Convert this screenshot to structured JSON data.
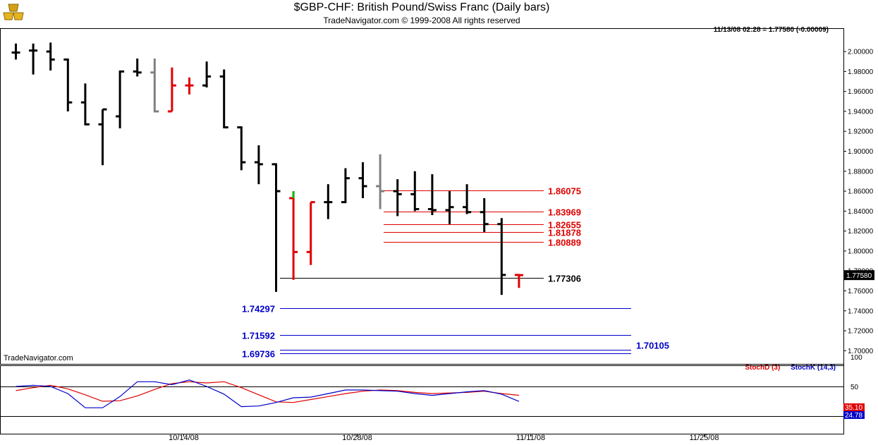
{
  "header": {
    "title": "$GBP-CHF:  British Pound/Swiss Franc  (Daily bars)",
    "subtitle": "TradeNavigator.com © 1999-2008 All rights reserved",
    "status": "11/13/08 02:28 = 1.77580 (-0.00009)",
    "watermark": "TradeNavigator.com",
    "logo_icon": "gold-bars-logo-icon"
  },
  "colors": {
    "up_bar": "#000000",
    "down_bar_red": "#e00000",
    "gray_bar": "#808080",
    "resistance": "#e00000",
    "support": "#0000c8",
    "stoch_d": "#e00000",
    "stoch_k": "#0000c8",
    "last_price_bg": "#000000"
  },
  "indicator": {
    "stoch_d_label": "StochD (3)",
    "stoch_k_label": "StochK (14,3)",
    "levels": [
      "100",
      "50",
      "0"
    ],
    "d_value": "35.10",
    "k_value": "24.78"
  },
  "chart_data": {
    "type": "ohlc",
    "title": "$GBP-CHF:  British Pound/Swiss Franc  (Daily bars)",
    "x_ticks": [
      "10/14/08",
      "10/28/08",
      "11/11/08",
      "11/25/08"
    ],
    "y_ticks": [
      "2.00000",
      "1.98000",
      "1.96000",
      "1.94000",
      "1.92000",
      "1.90000",
      "1.88000",
      "1.86000",
      "1.84000",
      "1.82000",
      "1.80000",
      "1.78000",
      "1.76000",
      "1.74000",
      "1.72000",
      "1.70000"
    ],
    "ylim": [
      1.6868,
      2.0234
    ],
    "last_price": "1.77580",
    "bars": [
      {
        "date": "2008-09-30",
        "h": 2.008,
        "l": 1.992,
        "o": 1.999,
        "c": 1.999,
        "color": "up"
      },
      {
        "date": "2008-10-01",
        "h": 2.008,
        "l": 1.977,
        "o": 2.001,
        "c": 2.001,
        "color": "up"
      },
      {
        "date": "2008-10-02",
        "h": 2.009,
        "l": 1.981,
        "o": 2.0,
        "c": 1.992,
        "color": "up"
      },
      {
        "date": "2008-10-03",
        "h": 1.993,
        "l": 1.94,
        "o": 1.992,
        "c": 1.949,
        "color": "up"
      },
      {
        "date": "2008-10-06",
        "h": 1.968,
        "l": 1.926,
        "o": 1.949,
        "c": 1.927,
        "color": "up"
      },
      {
        "date": "2008-10-07",
        "h": 1.942,
        "l": 1.886,
        "o": 1.927,
        "c": 1.942,
        "color": "up"
      },
      {
        "date": "2008-10-08",
        "h": 1.981,
        "l": 1.923,
        "o": 1.935,
        "c": 1.98,
        "color": "up"
      },
      {
        "date": "2008-10-09",
        "h": 1.993,
        "l": 1.975,
        "o": 1.98,
        "c": 1.979,
        "color": "up"
      },
      {
        "date": "2008-10-10",
        "h": 1.993,
        "l": 1.939,
        "o": 1.979,
        "c": 1.94,
        "color": "gray"
      },
      {
        "date": "2008-10-13",
        "h": 1.984,
        "l": 1.94,
        "o": 1.94,
        "c": 1.966,
        "color": "red"
      },
      {
        "date": "2008-10-14",
        "h": 1.974,
        "l": 1.957,
        "o": 1.966,
        "c": 1.966,
        "color": "red"
      },
      {
        "date": "2008-10-15",
        "h": 1.99,
        "l": 1.964,
        "o": 1.966,
        "c": 1.975,
        "color": "up"
      },
      {
        "date": "2008-10-16",
        "h": 1.982,
        "l": 1.923,
        "o": 1.975,
        "c": 1.924,
        "color": "up"
      },
      {
        "date": "2008-10-17",
        "h": 1.925,
        "l": 1.881,
        "o": 1.924,
        "c": 1.889,
        "color": "up"
      },
      {
        "date": "2008-10-20",
        "h": 1.906,
        "l": 1.867,
        "o": 1.889,
        "c": 1.887,
        "color": "up"
      },
      {
        "date": "2008-10-21",
        "h": 1.888,
        "l": 1.759,
        "o": 1.887,
        "c": 1.86,
        "color": "up"
      },
      {
        "date": "2008-10-22",
        "h": 1.86,
        "l": 1.771,
        "o": 1.853,
        "c": 1.799,
        "color": "red"
      },
      {
        "date": "2008-10-23",
        "h": 1.849,
        "l": 1.786,
        "o": 1.799,
        "c": 1.849,
        "color": "red"
      },
      {
        "date": "2008-10-24",
        "h": 1.867,
        "l": 1.832,
        "o": 1.849,
        "c": 1.849,
        "color": "up"
      },
      {
        "date": "2008-10-27",
        "h": 1.883,
        "l": 1.848,
        "o": 1.849,
        "c": 1.873,
        "color": "up"
      },
      {
        "date": "2008-10-28",
        "h": 1.889,
        "l": 1.853,
        "o": 1.873,
        "c": 1.865,
        "color": "up"
      },
      {
        "date": "2008-10-29",
        "h": 1.897,
        "l": 1.842,
        "o": 1.865,
        "c": 1.86,
        "color": "gray"
      },
      {
        "date": "2008-10-30",
        "h": 1.872,
        "l": 1.835,
        "o": 1.86,
        "c": 1.857,
        "color": "up"
      },
      {
        "date": "2008-10-31",
        "h": 1.88,
        "l": 1.84,
        "o": 1.857,
        "c": 1.842,
        "color": "up"
      },
      {
        "date": "2008-11-03",
        "h": 1.877,
        "l": 1.836,
        "o": 1.842,
        "c": 1.841,
        "color": "up"
      },
      {
        "date": "2008-11-04",
        "h": 1.86,
        "l": 1.827,
        "o": 1.841,
        "c": 1.844,
        "color": "up"
      },
      {
        "date": "2008-11-05",
        "h": 1.867,
        "l": 1.837,
        "o": 1.844,
        "c": 1.839,
        "color": "up"
      },
      {
        "date": "2008-11-06",
        "h": 1.853,
        "l": 1.819,
        "o": 1.839,
        "c": 1.827,
        "color": "up"
      },
      {
        "date": "2008-11-07",
        "h": 1.833,
        "l": 1.756,
        "o": 1.827,
        "c": 1.776,
        "color": "up"
      },
      {
        "date": "2008-11-10",
        "h": 1.777,
        "l": 1.763,
        "o": 1.776,
        "c": 1.7758,
        "color": "red"
      }
    ],
    "resistance_levels": [
      "1.86075",
      "1.83969",
      "1.82655",
      "1.81878",
      "1.80889"
    ],
    "pivot_level": "1.77306",
    "support_levels": [
      "1.74297",
      "1.71592",
      "1.69736",
      "1.70105"
    ],
    "stochastic": {
      "ylim": [
        0,
        100
      ],
      "series": [
        {
          "name": "StochD (3)",
          "values": [
            43,
            48,
            52,
            46,
            36,
            25,
            26,
            34,
            45,
            55,
            58,
            56,
            58,
            48,
            36,
            24,
            23,
            28,
            33,
            38,
            42,
            44,
            43,
            40,
            38,
            39,
            40,
            42,
            38,
            35.1
          ]
        },
        {
          "name": "StochK (14,3)",
          "values": [
            50,
            52,
            50,
            38,
            14,
            14,
            33,
            58,
            58,
            53,
            61,
            50,
            37,
            16,
            17,
            23,
            31,
            32,
            38,
            44,
            44,
            43,
            42,
            38,
            35,
            38,
            41,
            43,
            37,
            24.78
          ]
        }
      ]
    }
  }
}
